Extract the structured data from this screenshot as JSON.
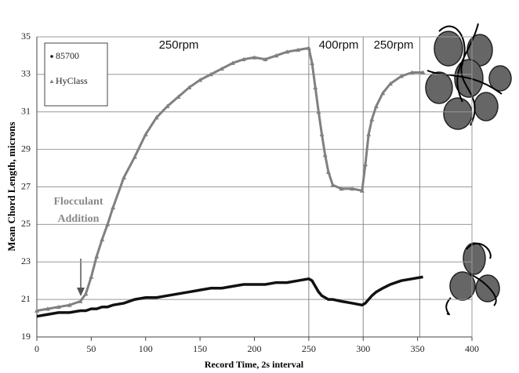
{
  "chart_data": {
    "type": "line",
    "xlabel": "Record Time, 2s interval",
    "ylabel": "Mean Chord Length, microns",
    "x": [
      0,
      10,
      20,
      30,
      40,
      45,
      50,
      55,
      60,
      65,
      70,
      80,
      90,
      100,
      110,
      120,
      130,
      140,
      150,
      160,
      170,
      180,
      190,
      200,
      210,
      220,
      230,
      240,
      250,
      253,
      256,
      259,
      262,
      265,
      268,
      272,
      280,
      290,
      299,
      302,
      305,
      308,
      312,
      318,
      325,
      335,
      345,
      355
    ],
    "series": [
      {
        "name": "85700",
        "color": "#111111",
        "marker": "dot",
        "values": [
          20.1,
          20.2,
          20.3,
          20.3,
          20.4,
          20.4,
          20.5,
          20.5,
          20.6,
          20.6,
          20.7,
          20.8,
          21.0,
          21.1,
          21.1,
          21.2,
          21.3,
          21.4,
          21.5,
          21.6,
          21.6,
          21.7,
          21.8,
          21.8,
          21.8,
          21.9,
          21.9,
          22.0,
          22.1,
          22.0,
          21.7,
          21.4,
          21.2,
          21.1,
          21.0,
          21.0,
          20.9,
          20.8,
          20.7,
          20.8,
          21.0,
          21.2,
          21.4,
          21.6,
          21.8,
          22.0,
          22.1,
          22.2
        ]
      },
      {
        "name": "HyClass",
        "color": "#808080",
        "marker": "triangle",
        "values": [
          20.4,
          20.5,
          20.6,
          20.7,
          20.9,
          21.3,
          22.2,
          23.3,
          24.2,
          25.0,
          25.9,
          27.5,
          28.6,
          29.8,
          30.7,
          31.3,
          31.8,
          32.3,
          32.7,
          33.0,
          33.3,
          33.6,
          33.8,
          33.9,
          33.8,
          34.0,
          34.2,
          34.3,
          34.4,
          33.6,
          32.3,
          31.0,
          29.8,
          28.7,
          27.8,
          27.1,
          26.9,
          26.9,
          26.8,
          28.2,
          29.8,
          30.6,
          31.3,
          32.0,
          32.5,
          32.9,
          33.1,
          33.1
        ]
      }
    ],
    "xlim": [
      0,
      400
    ],
    "xticks": [
      0,
      50,
      100,
      150,
      200,
      250,
      300,
      350,
      400
    ],
    "ylim": [
      19,
      35
    ],
    "yticks": [
      19,
      21,
      23,
      25,
      27,
      29,
      31,
      33,
      35
    ],
    "grid": true,
    "legend": "upper left",
    "vlines": [
      250,
      300,
      352
    ],
    "annotations": [
      "250rpm",
      "400rpm",
      "250rpm",
      "Flocculant",
      "Addition"
    ]
  }
}
